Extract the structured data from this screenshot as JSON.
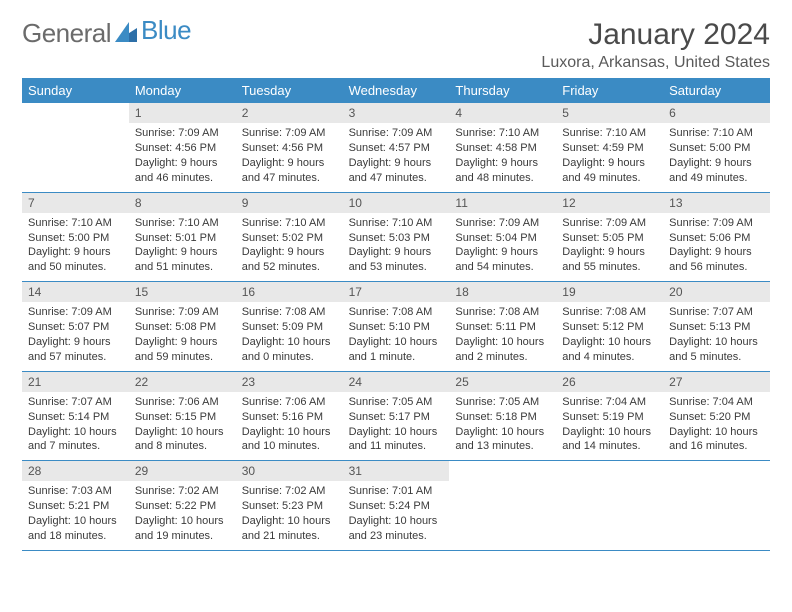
{
  "logo": {
    "part1": "General",
    "part2": "Blue"
  },
  "title": "January 2024",
  "location": "Luxora, Arkansas, United States",
  "theme": {
    "header_bg": "#3b8bc4",
    "header_text": "#ffffff",
    "daynum_bg": "#e8e8e8",
    "border_color": "#3b8bc4",
    "text_color": "#3a3a3a",
    "logo_gray": "#6b6b6b",
    "logo_blue": "#3b8bc4"
  },
  "day_names": [
    "Sunday",
    "Monday",
    "Tuesday",
    "Wednesday",
    "Thursday",
    "Friday",
    "Saturday"
  ],
  "weeks": [
    [
      null,
      {
        "d": "1",
        "sr": "Sunrise: 7:09 AM",
        "ss": "Sunset: 4:56 PM",
        "dl1": "Daylight: 9 hours",
        "dl2": "and 46 minutes."
      },
      {
        "d": "2",
        "sr": "Sunrise: 7:09 AM",
        "ss": "Sunset: 4:56 PM",
        "dl1": "Daylight: 9 hours",
        "dl2": "and 47 minutes."
      },
      {
        "d": "3",
        "sr": "Sunrise: 7:09 AM",
        "ss": "Sunset: 4:57 PM",
        "dl1": "Daylight: 9 hours",
        "dl2": "and 47 minutes."
      },
      {
        "d": "4",
        "sr": "Sunrise: 7:10 AM",
        "ss": "Sunset: 4:58 PM",
        "dl1": "Daylight: 9 hours",
        "dl2": "and 48 minutes."
      },
      {
        "d": "5",
        "sr": "Sunrise: 7:10 AM",
        "ss": "Sunset: 4:59 PM",
        "dl1": "Daylight: 9 hours",
        "dl2": "and 49 minutes."
      },
      {
        "d": "6",
        "sr": "Sunrise: 7:10 AM",
        "ss": "Sunset: 5:00 PM",
        "dl1": "Daylight: 9 hours",
        "dl2": "and 49 minutes."
      }
    ],
    [
      {
        "d": "7",
        "sr": "Sunrise: 7:10 AM",
        "ss": "Sunset: 5:00 PM",
        "dl1": "Daylight: 9 hours",
        "dl2": "and 50 minutes."
      },
      {
        "d": "8",
        "sr": "Sunrise: 7:10 AM",
        "ss": "Sunset: 5:01 PM",
        "dl1": "Daylight: 9 hours",
        "dl2": "and 51 minutes."
      },
      {
        "d": "9",
        "sr": "Sunrise: 7:10 AM",
        "ss": "Sunset: 5:02 PM",
        "dl1": "Daylight: 9 hours",
        "dl2": "and 52 minutes."
      },
      {
        "d": "10",
        "sr": "Sunrise: 7:10 AM",
        "ss": "Sunset: 5:03 PM",
        "dl1": "Daylight: 9 hours",
        "dl2": "and 53 minutes."
      },
      {
        "d": "11",
        "sr": "Sunrise: 7:09 AM",
        "ss": "Sunset: 5:04 PM",
        "dl1": "Daylight: 9 hours",
        "dl2": "and 54 minutes."
      },
      {
        "d": "12",
        "sr": "Sunrise: 7:09 AM",
        "ss": "Sunset: 5:05 PM",
        "dl1": "Daylight: 9 hours",
        "dl2": "and 55 minutes."
      },
      {
        "d": "13",
        "sr": "Sunrise: 7:09 AM",
        "ss": "Sunset: 5:06 PM",
        "dl1": "Daylight: 9 hours",
        "dl2": "and 56 minutes."
      }
    ],
    [
      {
        "d": "14",
        "sr": "Sunrise: 7:09 AM",
        "ss": "Sunset: 5:07 PM",
        "dl1": "Daylight: 9 hours",
        "dl2": "and 57 minutes."
      },
      {
        "d": "15",
        "sr": "Sunrise: 7:09 AM",
        "ss": "Sunset: 5:08 PM",
        "dl1": "Daylight: 9 hours",
        "dl2": "and 59 minutes."
      },
      {
        "d": "16",
        "sr": "Sunrise: 7:08 AM",
        "ss": "Sunset: 5:09 PM",
        "dl1": "Daylight: 10 hours",
        "dl2": "and 0 minutes."
      },
      {
        "d": "17",
        "sr": "Sunrise: 7:08 AM",
        "ss": "Sunset: 5:10 PM",
        "dl1": "Daylight: 10 hours",
        "dl2": "and 1 minute."
      },
      {
        "d": "18",
        "sr": "Sunrise: 7:08 AM",
        "ss": "Sunset: 5:11 PM",
        "dl1": "Daylight: 10 hours",
        "dl2": "and 2 minutes."
      },
      {
        "d": "19",
        "sr": "Sunrise: 7:08 AM",
        "ss": "Sunset: 5:12 PM",
        "dl1": "Daylight: 10 hours",
        "dl2": "and 4 minutes."
      },
      {
        "d": "20",
        "sr": "Sunrise: 7:07 AM",
        "ss": "Sunset: 5:13 PM",
        "dl1": "Daylight: 10 hours",
        "dl2": "and 5 minutes."
      }
    ],
    [
      {
        "d": "21",
        "sr": "Sunrise: 7:07 AM",
        "ss": "Sunset: 5:14 PM",
        "dl1": "Daylight: 10 hours",
        "dl2": "and 7 minutes."
      },
      {
        "d": "22",
        "sr": "Sunrise: 7:06 AM",
        "ss": "Sunset: 5:15 PM",
        "dl1": "Daylight: 10 hours",
        "dl2": "and 8 minutes."
      },
      {
        "d": "23",
        "sr": "Sunrise: 7:06 AM",
        "ss": "Sunset: 5:16 PM",
        "dl1": "Daylight: 10 hours",
        "dl2": "and 10 minutes."
      },
      {
        "d": "24",
        "sr": "Sunrise: 7:05 AM",
        "ss": "Sunset: 5:17 PM",
        "dl1": "Daylight: 10 hours",
        "dl2": "and 11 minutes."
      },
      {
        "d": "25",
        "sr": "Sunrise: 7:05 AM",
        "ss": "Sunset: 5:18 PM",
        "dl1": "Daylight: 10 hours",
        "dl2": "and 13 minutes."
      },
      {
        "d": "26",
        "sr": "Sunrise: 7:04 AM",
        "ss": "Sunset: 5:19 PM",
        "dl1": "Daylight: 10 hours",
        "dl2": "and 14 minutes."
      },
      {
        "d": "27",
        "sr": "Sunrise: 7:04 AM",
        "ss": "Sunset: 5:20 PM",
        "dl1": "Daylight: 10 hours",
        "dl2": "and 16 minutes."
      }
    ],
    [
      {
        "d": "28",
        "sr": "Sunrise: 7:03 AM",
        "ss": "Sunset: 5:21 PM",
        "dl1": "Daylight: 10 hours",
        "dl2": "and 18 minutes."
      },
      {
        "d": "29",
        "sr": "Sunrise: 7:02 AM",
        "ss": "Sunset: 5:22 PM",
        "dl1": "Daylight: 10 hours",
        "dl2": "and 19 minutes."
      },
      {
        "d": "30",
        "sr": "Sunrise: 7:02 AM",
        "ss": "Sunset: 5:23 PM",
        "dl1": "Daylight: 10 hours",
        "dl2": "and 21 minutes."
      },
      {
        "d": "31",
        "sr": "Sunrise: 7:01 AM",
        "ss": "Sunset: 5:24 PM",
        "dl1": "Daylight: 10 hours",
        "dl2": "and 23 minutes."
      },
      null,
      null,
      null
    ]
  ]
}
